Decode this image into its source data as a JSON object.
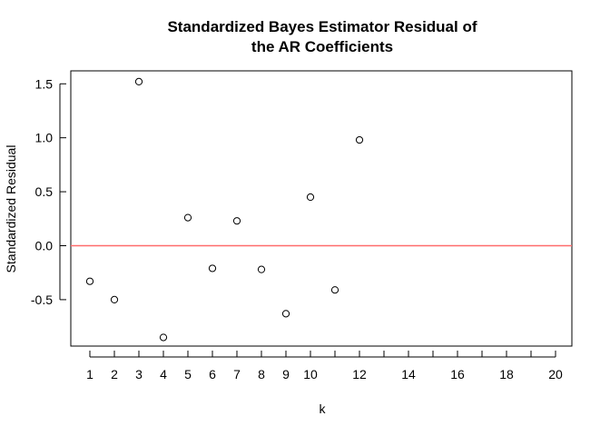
{
  "chart_data": {
    "type": "scatter",
    "title": "Standardized Bayes Estimator Residual of the AR Coefficients",
    "title_lines": [
      "Standardized Bayes Estimator Residual of",
      "the AR Coefficients"
    ],
    "xlabel": "k",
    "ylabel": "Standardized Residual",
    "xlim": [
      0,
      20
    ],
    "ylim": [
      -0.93,
      1.62
    ],
    "x_ticks": [
      1,
      2,
      3,
      4,
      5,
      6,
      7,
      8,
      9,
      10,
      11,
      12,
      13,
      14,
      15,
      16,
      17,
      18,
      19,
      20
    ],
    "x_tick_labels": [
      "1",
      "2",
      "3",
      "4",
      "5",
      "6",
      "7",
      "8",
      "9",
      "10",
      "",
      "12",
      "",
      "14",
      "",
      "16",
      "",
      "18",
      "",
      "20"
    ],
    "y_ticks": [
      -0.5,
      0.0,
      0.5,
      1.0,
      1.5
    ],
    "y_tick_labels": [
      "-0.5",
      "0.0",
      "0.5",
      "1.0",
      "1.5"
    ],
    "grid": false,
    "series": [
      {
        "x": [
          1,
          2,
          3,
          4,
          5,
          6,
          7,
          8,
          9,
          10,
          11,
          12
        ],
        "y": [
          -0.33,
          -0.5,
          1.52,
          -0.85,
          0.26,
          -0.21,
          0.23,
          -0.22,
          -0.63,
          0.45,
          -0.41,
          0.98
        ],
        "marker": "open-circle",
        "color": "#000000"
      }
    ],
    "reference_line": {
      "y": 0,
      "color": "#ff6b6b"
    }
  }
}
